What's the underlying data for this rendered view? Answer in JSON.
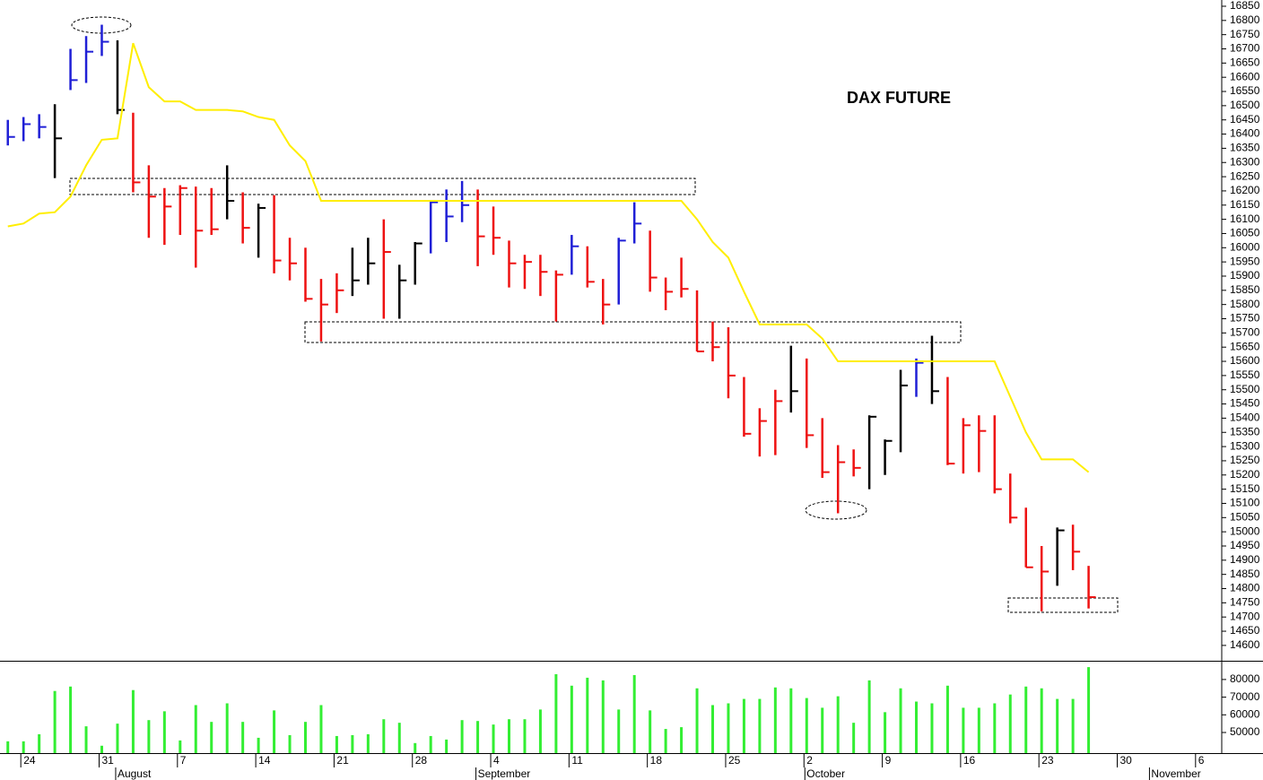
{
  "chart_data": [
    {
      "type": "ohlc",
      "title": "DAX FUTURE",
      "categories": [
        null,
        "24",
        null,
        null,
        null,
        null,
        "31",
        null,
        null,
        null,
        null,
        "7",
        null,
        null,
        null,
        null,
        "14",
        null,
        null,
        null,
        null,
        "21",
        null,
        null,
        null,
        null,
        "28",
        null,
        null,
        null,
        null,
        "4",
        null,
        null,
        null,
        null,
        "11",
        null,
        null,
        null,
        null,
        "18",
        null,
        null,
        null,
        null,
        "25",
        null,
        null,
        null,
        null,
        "2",
        null,
        null,
        null,
        null,
        "9",
        null,
        null,
        null,
        null,
        "16",
        null,
        null,
        null,
        null,
        "23",
        null,
        null,
        null,
        null,
        "30",
        null,
        null,
        null,
        null,
        "6",
        null
      ],
      "months": [
        {
          "label": "August",
          "index": 7
        },
        {
          "label": "September",
          "index": 30
        },
        {
          "label": "October",
          "index": 51
        },
        {
          "label": "November",
          "index": 73
        }
      ],
      "high": [
        16450,
        16460,
        16470,
        16505,
        16700,
        16745,
        16785,
        16730,
        16475,
        16290,
        16210,
        16220,
        16215,
        16210,
        16290,
        16195,
        16155,
        16185,
        16035,
        16000,
        15890,
        15910,
        16000,
        16035,
        16100,
        15940,
        16020,
        16165,
        16205,
        16235,
        16205,
        16145,
        16025,
        15975,
        15975,
        15920,
        16045,
        16005,
        15890,
        16035,
        16160,
        16060,
        15895,
        15965,
        15850,
        15740,
        15720,
        15545,
        15435,
        15500,
        15655,
        15610,
        15400,
        15305,
        15290,
        15410,
        15325,
        15570,
        15610,
        15690,
        15545,
        15400,
        15410,
        15410,
        15205,
        15085,
        14950,
        15015,
        15025,
        14880,
        null,
        null,
        null,
        null,
        null,
        null,
        null,
        null
      ],
      "low": [
        16360,
        16375,
        16385,
        16245,
        16555,
        16580,
        16675,
        16470,
        16195,
        16035,
        16010,
        16045,
        15930,
        16045,
        16100,
        16015,
        15965,
        15910,
        15885,
        15810,
        15670,
        15770,
        15830,
        15870,
        15750,
        15750,
        15870,
        15980,
        16020,
        16090,
        15935,
        15975,
        15860,
        15855,
        15830,
        15740,
        15905,
        15860,
        15730,
        15800,
        16015,
        15845,
        15780,
        15825,
        15635,
        15600,
        15470,
        15335,
        15265,
        15270,
        15420,
        15295,
        15190,
        15065,
        15195,
        15150,
        15200,
        15280,
        15475,
        15450,
        15235,
        15205,
        15210,
        15135,
        15030,
        14875,
        14720,
        14810,
        14865,
        14730,
        null,
        null,
        null,
        null,
        null,
        null,
        null,
        null
      ],
      "close": [
        16390,
        16435,
        16425,
        16385,
        16590,
        16690,
        16725,
        16485,
        16230,
        16180,
        16145,
        16210,
        16060,
        16065,
        16165,
        16070,
        16140,
        15955,
        15945,
        15820,
        15800,
        15850,
        15885,
        15945,
        15985,
        15885,
        16015,
        16160,
        16110,
        16150,
        16040,
        16035,
        15945,
        15950,
        15915,
        15905,
        16005,
        15880,
        15800,
        16025,
        16085,
        15895,
        15845,
        15855,
        15635,
        15650,
        15550,
        15345,
        15390,
        15460,
        15495,
        15340,
        15210,
        15245,
        15225,
        15405,
        15320,
        15515,
        15595,
        15495,
        15240,
        15375,
        15355,
        15150,
        15050,
        14875,
        14860,
        15005,
        14930,
        14770,
        null,
        null,
        null,
        null,
        null,
        null,
        null,
        null
      ],
      "bar_colors": [
        "#1f1fd6",
        "#1f1fd6",
        "#1f1fd6",
        "#000000",
        "#1f1fd6",
        "#1f1fd6",
        "#1f1fd6",
        "#000000",
        "#ee1111",
        "#ee1111",
        "#ee1111",
        "#ee1111",
        "#ee1111",
        "#ee1111",
        "#000000",
        "#ee1111",
        "#000000",
        "#ee1111",
        "#ee1111",
        "#ee1111",
        "#ee1111",
        "#ee1111",
        "#000000",
        "#000000",
        "#ee1111",
        "#000000",
        "#000000",
        "#1f1fd6",
        "#1f1fd6",
        "#1f1fd6",
        "#ee1111",
        "#ee1111",
        "#ee1111",
        "#ee1111",
        "#ee1111",
        "#ee1111",
        "#1f1fd6",
        "#ee1111",
        "#ee1111",
        "#1f1fd6",
        "#1f1fd6",
        "#ee1111",
        "#ee1111",
        "#ee1111",
        "#ee1111",
        "#ee1111",
        "#ee1111",
        "#ee1111",
        "#ee1111",
        "#ee1111",
        "#000000",
        "#ee1111",
        "#ee1111",
        "#ee1111",
        "#ee1111",
        "#000000",
        "#000000",
        "#000000",
        "#1f1fd6",
        "#000000",
        "#ee1111",
        "#ee1111",
        "#ee1111",
        "#ee1111",
        "#ee1111",
        "#ee1111",
        "#ee1111",
        "#000000",
        "#ee1111",
        "#ee1111",
        null,
        null,
        null,
        null,
        null,
        null,
        null,
        null
      ],
      "overlay": {
        "color": "#ffee00",
        "values": [
          16075,
          16085,
          16120,
          16125,
          16180,
          16290,
          16380,
          16385,
          16720,
          16565,
          16515,
          16515,
          16485,
          16485,
          16485,
          16480,
          16460,
          16450,
          16360,
          16305,
          16165,
          16165,
          16165,
          16165,
          16165,
          16165,
          16165,
          16165,
          16165,
          16165,
          16165,
          16165,
          16165,
          16165,
          16165,
          16165,
          16165,
          16165,
          16165,
          16165,
          16165,
          16165,
          16165,
          16165,
          16100,
          16020,
          15965,
          15845,
          15730,
          15730,
          15730,
          15730,
          15680,
          15600,
          15600,
          15600,
          15600,
          15600,
          15600,
          15600,
          15600,
          15600,
          15600,
          15600,
          15475,
          15350,
          15255,
          15255,
          15255,
          15210,
          null,
          null,
          null,
          null,
          null,
          null,
          null,
          null
        ]
      },
      "ylim": [
        14546,
        16872
      ],
      "yticks": [
        14600,
        14650,
        14700,
        14750,
        14800,
        14850,
        14900,
        14950,
        15000,
        15050,
        15100,
        15150,
        15200,
        15250,
        15300,
        15350,
        15400,
        15450,
        15500,
        15550,
        15600,
        15650,
        15700,
        15750,
        15800,
        15850,
        15900,
        15950,
        16000,
        16050,
        16100,
        16150,
        16200,
        16250,
        16300,
        16350,
        16400,
        16450,
        16500,
        16550,
        16600,
        16650,
        16700,
        16750,
        16800,
        16850
      ]
    },
    {
      "type": "bar",
      "color": "#33ee33",
      "values": [
        45000,
        45000,
        49000,
        73500,
        76000,
        53500,
        42500,
        55000,
        74000,
        57000,
        62000,
        45500,
        65500,
        56000,
        66500,
        56000,
        47000,
        62500,
        48500,
        56000,
        65500,
        48000,
        48500,
        49000,
        57500,
        55500,
        44000,
        48000,
        46000,
        57000,
        56500,
        54500,
        57500,
        57500,
        63000,
        83000,
        76500,
        81000,
        79500,
        63000,
        82500,
        62500,
        52000,
        53000,
        75000,
        65500,
        66500,
        69000,
        69000,
        75500,
        75000,
        69500,
        64000,
        70500,
        55500,
        79500,
        61500,
        75000,
        67500,
        66500,
        76500,
        64000,
        64000,
        66500,
        71500,
        76000,
        75000,
        69000,
        69000,
        87000,
        null,
        null,
        null,
        null,
        null,
        null,
        null,
        null
      ],
      "ylim": [
        38325,
        89085
      ],
      "yticks": [
        50000,
        60000,
        70000,
        80000
      ]
    }
  ]
}
